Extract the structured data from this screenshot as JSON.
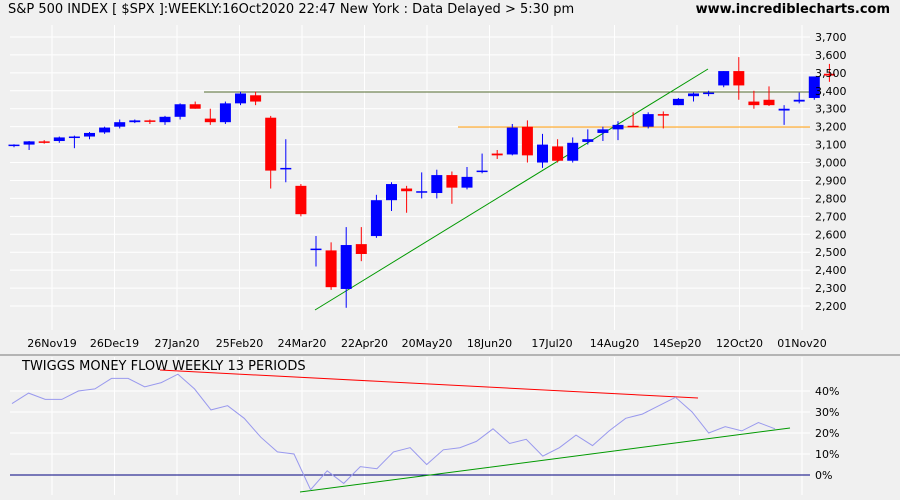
{
  "header": {
    "title": "S&P 500 INDEX [ $SPX ]:WEEKLY:16Oct2020 22:47 New York : Data Delayed > 5:30 pm",
    "site": "www.incrediblecharts.com"
  },
  "colors": {
    "background": "#f0f0f0",
    "grid": "#ffffff",
    "up_candle": "#0000ff",
    "down_candle": "#ff0000",
    "flow_line": "#9999ee",
    "resistance_line": "#556b2f",
    "support_line": "#ff9900",
    "trend_line": "#009900",
    "divergence_line": "#ff0000",
    "zero_line": "#000080"
  },
  "chart_data": [
    {
      "type": "candlestick",
      "title": "S&P 500 INDEX [ $SPX ]:WEEKLY",
      "x_tick_labels": [
        "26Nov19",
        "26Dec19",
        "27Jan20",
        "25Feb20",
        "24Mar20",
        "22Apr20",
        "20May20",
        "18Jun20",
        "17Jul20",
        "14Aug20",
        "14Sep20",
        "12Oct20",
        "01Nov20"
      ],
      "y_ticks": [
        2200,
        2300,
        2400,
        2500,
        2600,
        2700,
        2800,
        2900,
        3000,
        3100,
        3200,
        3300,
        3400,
        3500,
        3600,
        3700
      ],
      "y_tick_labels": [
        "2,200",
        "2,300",
        "2,400",
        "2,500",
        "2,600",
        "2,700",
        "2,800",
        "2,900",
        "3,000",
        "3,100",
        "3,200",
        "3,300",
        "3,400",
        "3,500",
        "3,600",
        "3,700"
      ],
      "ylim": [
        2100,
        3750
      ],
      "candles": [
        {
          "o": 3092,
          "h": 3102,
          "l": 3085,
          "c": 3100
        },
        {
          "o": 3100,
          "h": 3120,
          "l": 3070,
          "c": 3118
        },
        {
          "o": 3118,
          "h": 3125,
          "l": 3105,
          "c": 3115
        },
        {
          "o": 3120,
          "h": 3145,
          "l": 3110,
          "c": 3140
        },
        {
          "o": 3140,
          "h": 3150,
          "l": 3080,
          "c": 3145
        },
        {
          "o": 3145,
          "h": 3170,
          "l": 3130,
          "c": 3165
        },
        {
          "o": 3168,
          "h": 3200,
          "l": 3160,
          "c": 3195
        },
        {
          "o": 3200,
          "h": 3240,
          "l": 3190,
          "c": 3225
        },
        {
          "o": 3225,
          "h": 3240,
          "l": 3220,
          "c": 3235
        },
        {
          "o": 3235,
          "h": 3240,
          "l": 3215,
          "c": 3230
        },
        {
          "o": 3225,
          "h": 3260,
          "l": 3210,
          "c": 3255
        },
        {
          "o": 3255,
          "h": 3330,
          "l": 3240,
          "c": 3325
        },
        {
          "o": 3325,
          "h": 3340,
          "l": 3300,
          "c": 3300
        },
        {
          "o": 3245,
          "h": 3300,
          "l": 3210,
          "c": 3225
        },
        {
          "o": 3225,
          "h": 3340,
          "l": 3215,
          "c": 3330
        },
        {
          "o": 3330,
          "h": 3395,
          "l": 3320,
          "c": 3385
        },
        {
          "o": 3375,
          "h": 3395,
          "l": 3320,
          "c": 3340
        },
        {
          "o": 3250,
          "h": 3260,
          "l": 2855,
          "c": 2955
        },
        {
          "o": 2965,
          "h": 3130,
          "l": 2890,
          "c": 2970
        },
        {
          "o": 2870,
          "h": 2880,
          "l": 2700,
          "c": 2712
        },
        {
          "o": 2520,
          "h": 2590,
          "l": 2420,
          "c": 2520
        },
        {
          "o": 2510,
          "h": 2555,
          "l": 2290,
          "c": 2305
        },
        {
          "o": 2295,
          "h": 2640,
          "l": 2190,
          "c": 2540
        },
        {
          "o": 2545,
          "h": 2640,
          "l": 2450,
          "c": 2490
        },
        {
          "o": 2590,
          "h": 2820,
          "l": 2580,
          "c": 2790
        },
        {
          "o": 2790,
          "h": 2890,
          "l": 2730,
          "c": 2880
        },
        {
          "o": 2855,
          "h": 2870,
          "l": 2720,
          "c": 2840
        },
        {
          "o": 2840,
          "h": 2945,
          "l": 2800,
          "c": 2840
        },
        {
          "o": 2830,
          "h": 2960,
          "l": 2800,
          "c": 2930
        },
        {
          "o": 2930,
          "h": 2950,
          "l": 2770,
          "c": 2860
        },
        {
          "o": 2860,
          "h": 2975,
          "l": 2850,
          "c": 2920
        },
        {
          "o": 2950,
          "h": 3050,
          "l": 2940,
          "c": 2955
        },
        {
          "o": 3050,
          "h": 3070,
          "l": 3020,
          "c": 3040
        },
        {
          "o": 3045,
          "h": 3215,
          "l": 3040,
          "c": 3195
        },
        {
          "o": 3200,
          "h": 3235,
          "l": 3000,
          "c": 3040
        },
        {
          "o": 3000,
          "h": 3160,
          "l": 2970,
          "c": 3100
        },
        {
          "o": 3090,
          "h": 3130,
          "l": 3000,
          "c": 3010
        },
        {
          "o": 3010,
          "h": 3140,
          "l": 3000,
          "c": 3110
        },
        {
          "o": 3115,
          "h": 3185,
          "l": 3100,
          "c": 3130
        },
        {
          "o": 3165,
          "h": 3200,
          "l": 3120,
          "c": 3185
        },
        {
          "o": 3185,
          "h": 3230,
          "l": 3125,
          "c": 3210
        },
        {
          "o": 3205,
          "h": 3280,
          "l": 3200,
          "c": 3200
        },
        {
          "o": 3200,
          "h": 3280,
          "l": 3190,
          "c": 3270
        },
        {
          "o": 3270,
          "h": 3285,
          "l": 3190,
          "c": 3265
        },
        {
          "o": 3320,
          "h": 3360,
          "l": 3320,
          "c": 3355
        },
        {
          "o": 3370,
          "h": 3390,
          "l": 3340,
          "c": 3385
        },
        {
          "o": 3385,
          "h": 3400,
          "l": 3370,
          "c": 3390
        },
        {
          "o": 3430,
          "h": 3510,
          "l": 3420,
          "c": 3510
        },
        {
          "o": 3510,
          "h": 3588,
          "l": 3350,
          "c": 3430
        },
        {
          "o": 3340,
          "h": 3400,
          "l": 3300,
          "c": 3320
        },
        {
          "o": 3350,
          "h": 3425,
          "l": 3315,
          "c": 3320
        },
        {
          "o": 3290,
          "h": 3320,
          "l": 3210,
          "c": 3300
        },
        {
          "o": 3340,
          "h": 3390,
          "l": 3330,
          "c": 3350
        },
        {
          "o": 3360,
          "h": 3480,
          "l": 3350,
          "c": 3480
        },
        {
          "o": 3495,
          "h": 3550,
          "l": 3450,
          "c": 3485
        }
      ]
    },
    {
      "type": "line",
      "title": "TWIGGS MONEY FLOW WEEKLY 13 PERIODS",
      "y_ticks": [
        0,
        10,
        20,
        30,
        40
      ],
      "y_tick_labels": [
        "0%",
        "10%",
        "20%",
        "30%",
        "40%"
      ],
      "ylim": [
        -8,
        52
      ],
      "series": [
        {
          "values": [
            34,
            39,
            36,
            36,
            40,
            41,
            46,
            46,
            42,
            44,
            48,
            41,
            31,
            33,
            27,
            18,
            11,
            10,
            -7,
            2,
            -4,
            4,
            3,
            11,
            13,
            5,
            12,
            13,
            16,
            22,
            15,
            17,
            9,
            13,
            19,
            14,
            21,
            27,
            29,
            33,
            37,
            30,
            20,
            23,
            21,
            25,
            22
          ]
        }
      ]
    }
  ]
}
